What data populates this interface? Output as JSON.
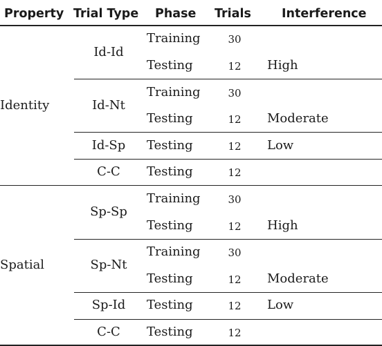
{
  "headers": {
    "property": "Property",
    "trial_type": "Trial Type",
    "phase": "Phase",
    "trials": "Trials",
    "interference": "Interference"
  },
  "groups": [
    {
      "property": "Identity",
      "subgroups": [
        {
          "trial_type": "Id-Id",
          "rows": [
            {
              "phase": "Training",
              "trials": "30",
              "interference": ""
            },
            {
              "phase": "Testing",
              "trials": "12",
              "interference": "High"
            }
          ]
        },
        {
          "trial_type": "Id-Nt",
          "rows": [
            {
              "phase": "Training",
              "trials": "30",
              "interference": ""
            },
            {
              "phase": "Testing",
              "trials": "12",
              "interference": "Moderate"
            }
          ]
        },
        {
          "trial_type": "Id-Sp",
          "rows": [
            {
              "phase": "Testing",
              "trials": "12",
              "interference": "Low"
            }
          ]
        },
        {
          "trial_type": "C-C",
          "rows": [
            {
              "phase": "Testing",
              "trials": "12",
              "interference": ""
            }
          ]
        }
      ]
    },
    {
      "property": "Spatial",
      "subgroups": [
        {
          "trial_type": "Sp-Sp",
          "rows": [
            {
              "phase": "Training",
              "trials": "30",
              "interference": ""
            },
            {
              "phase": "Testing",
              "trials": "12",
              "interference": "High"
            }
          ]
        },
        {
          "trial_type": "Sp-Nt",
          "rows": [
            {
              "phase": "Training",
              "trials": "30",
              "interference": ""
            },
            {
              "phase": "Testing",
              "trials": "12",
              "interference": "Moderate"
            }
          ]
        },
        {
          "trial_type": "Sp-Id",
          "rows": [
            {
              "phase": "Testing",
              "trials": "12",
              "interference": "Low"
            }
          ]
        },
        {
          "trial_type": "C-C",
          "rows": [
            {
              "phase": "Testing",
              "trials": "12",
              "interference": ""
            }
          ]
        }
      ]
    }
  ]
}
